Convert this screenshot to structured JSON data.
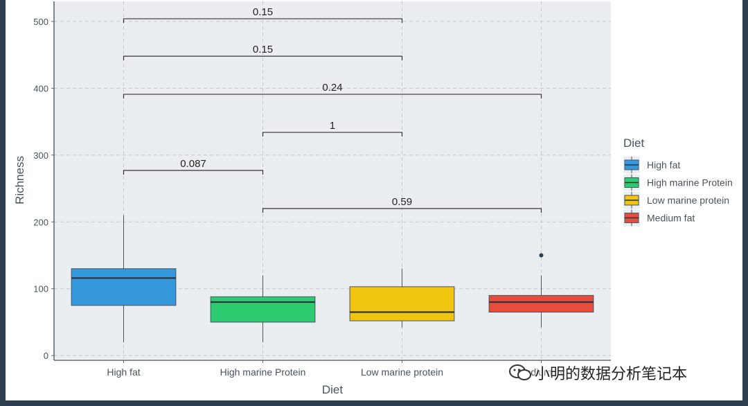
{
  "chart_data": {
    "type": "boxplot",
    "xlabel": "Diet",
    "ylabel": "Richness",
    "ylim": [
      -5,
      530
    ],
    "yticks": [
      0,
      100,
      200,
      300,
      400,
      500
    ],
    "grid": true,
    "legend_position": "right",
    "legend_title": "Diet",
    "categories": [
      "High fat",
      "High marine Protein",
      "Low marine protein",
      "Medium fat"
    ],
    "colors": [
      "#3498db",
      "#2ecc71",
      "#f1c40f",
      "#e74c3c"
    ],
    "boxes": [
      {
        "name": "High fat",
        "min": 20,
        "q1": 75,
        "median": 116,
        "q3": 130,
        "max": 210,
        "outliers": []
      },
      {
        "name": "High marine Protein",
        "min": 20,
        "q1": 50,
        "median": 80,
        "q3": 88,
        "max": 120,
        "outliers": []
      },
      {
        "name": "Low marine protein",
        "min": 42,
        "q1": 52,
        "median": 65,
        "q3": 103,
        "max": 130,
        "outliers": []
      },
      {
        "name": "Medium fat",
        "min": 42,
        "q1": 65,
        "median": 80,
        "q3": 90,
        "max": 120,
        "outliers": [
          150
        ]
      }
    ],
    "comparisons": [
      {
        "from": 0,
        "to": 2,
        "y": 504,
        "label": "0.15"
      },
      {
        "from": 0,
        "to": 2,
        "y": 448,
        "label": "0.15"
      },
      {
        "from": 0,
        "to": 3,
        "y": 391,
        "label": "0.24"
      },
      {
        "from": 1,
        "to": 2,
        "y": 334,
        "label": "1"
      },
      {
        "from": 0,
        "to": 1,
        "y": 277,
        "label": "0.087"
      },
      {
        "from": 1,
        "to": 3,
        "y": 220,
        "label": "0.59"
      }
    ]
  },
  "watermark": {
    "text": "小明的数据分析笔记本",
    "icon": "wechat-icon"
  }
}
